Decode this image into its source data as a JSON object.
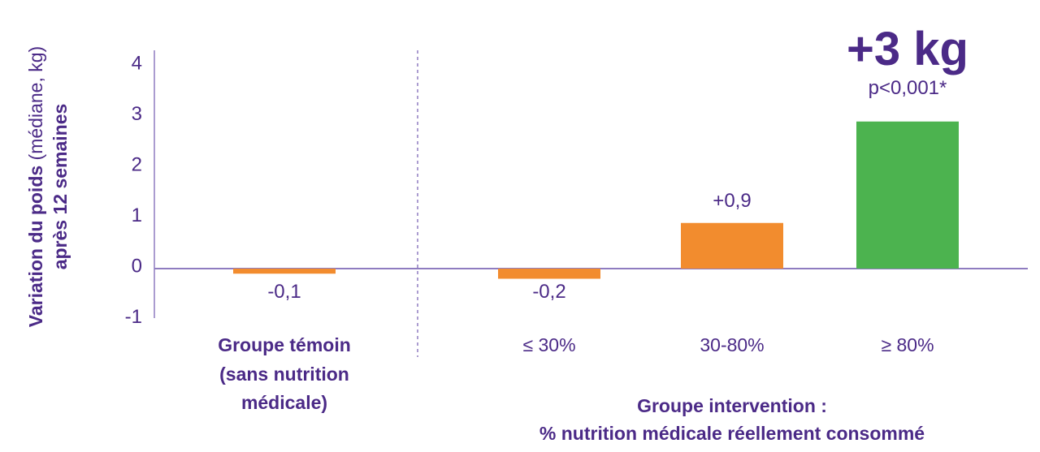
{
  "chart_data": {
    "type": "bar",
    "ylabel_bold": "Variation du poids",
    "ylabel_regular": " (médiane, kg)",
    "ylabel_line2": "après 12 semaines",
    "yticks": [
      "4",
      "3",
      "2",
      "1",
      "0",
      "-1"
    ],
    "ylim": [
      -1,
      4
    ],
    "categories": [
      "Groupe témoin (sans nutrition médicale)",
      "≤ 30%",
      "30-80%",
      "≥ 80%"
    ],
    "values": [
      -0.1,
      -0.2,
      0.9,
      2.9
    ],
    "data_labels": [
      "-0,1",
      "-0,2",
      "+0,9",
      ""
    ],
    "colors": [
      "#f28c2e",
      "#f28c2e",
      "#f28c2e",
      "#4cb34f"
    ],
    "control_group_label": [
      "Groupe témoin",
      "(sans nutrition",
      "médicale)"
    ],
    "intervention_labels": [
      "≤ 30%",
      "30-80%",
      "≥ 80%"
    ],
    "intervention_group_title": [
      "Groupe intervention :",
      "% nutrition médicale réellement consommé"
    ],
    "annotation_main": "+3 kg",
    "annotation_pvalue": "p<0,001*",
    "grid": false,
    "axis_color": "#8f7cc0",
    "text_color": "#4b2a87"
  }
}
